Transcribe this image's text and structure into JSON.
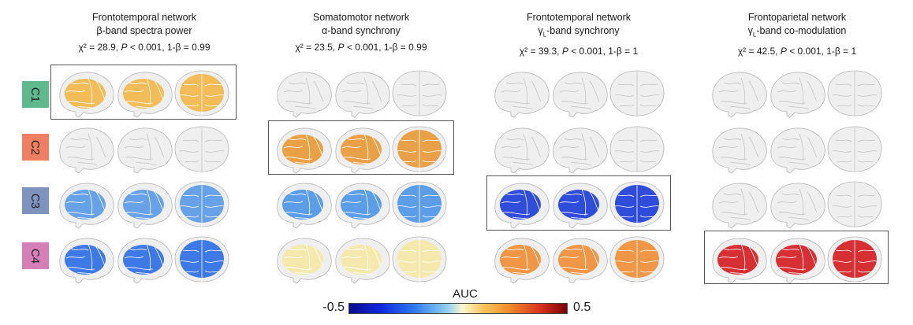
{
  "columns": [
    {
      "network": "Frontotemporal network",
      "band": "β-band spectra power",
      "chi": "χ² = 28.9, ",
      "p_italic": "P",
      "p_rest": " < 0.001, 1-β = 0.99"
    },
    {
      "network": "Somatomotor network",
      "band": "α-band synchrony",
      "chi": "χ² = 23.5, ",
      "p_italic": "P",
      "p_rest": " < 0.001, 1-β = 0.99"
    },
    {
      "network": "Frontotemporal network",
      "band": "γL-band synchrony",
      "chi": "χ² = 39.3, ",
      "p_italic": "P",
      "p_rest": " < 0.001, 1-β = 1"
    },
    {
      "network": "Frontoparietal network",
      "band": "γL-band co-modulation",
      "chi": "χ² = 42.5, ",
      "p_italic": "P",
      "p_rest": " < 0.001, 1-β = 1"
    }
  ],
  "rows": [
    {
      "label": "C1",
      "color": "#5fb98c"
    },
    {
      "label": "C2",
      "color": "#ee7f62"
    },
    {
      "label": "C3",
      "color": "#7f93bf"
    },
    {
      "label": "C4",
      "color": "#d47fb8"
    }
  ],
  "cell_colors": [
    [
      "#f2b84b",
      "#ececec",
      "#ececec",
      "#ececec"
    ],
    [
      "#ececec",
      "#e89a3a",
      "#ececec",
      "#ececec"
    ],
    [
      "#5b9be8",
      "#4f96e6",
      "#1f3ed8",
      "#ececec"
    ],
    [
      "#2f6fe5",
      "#f5e8a8",
      "#ef8f38",
      "#d41f24"
    ]
  ],
  "highlighted_cells": [
    [
      0,
      0
    ],
    [
      1,
      1
    ],
    [
      2,
      2
    ],
    [
      3,
      3
    ]
  ],
  "legend": {
    "title": "AUC",
    "min": "-0.5",
    "max": "0.5"
  }
}
